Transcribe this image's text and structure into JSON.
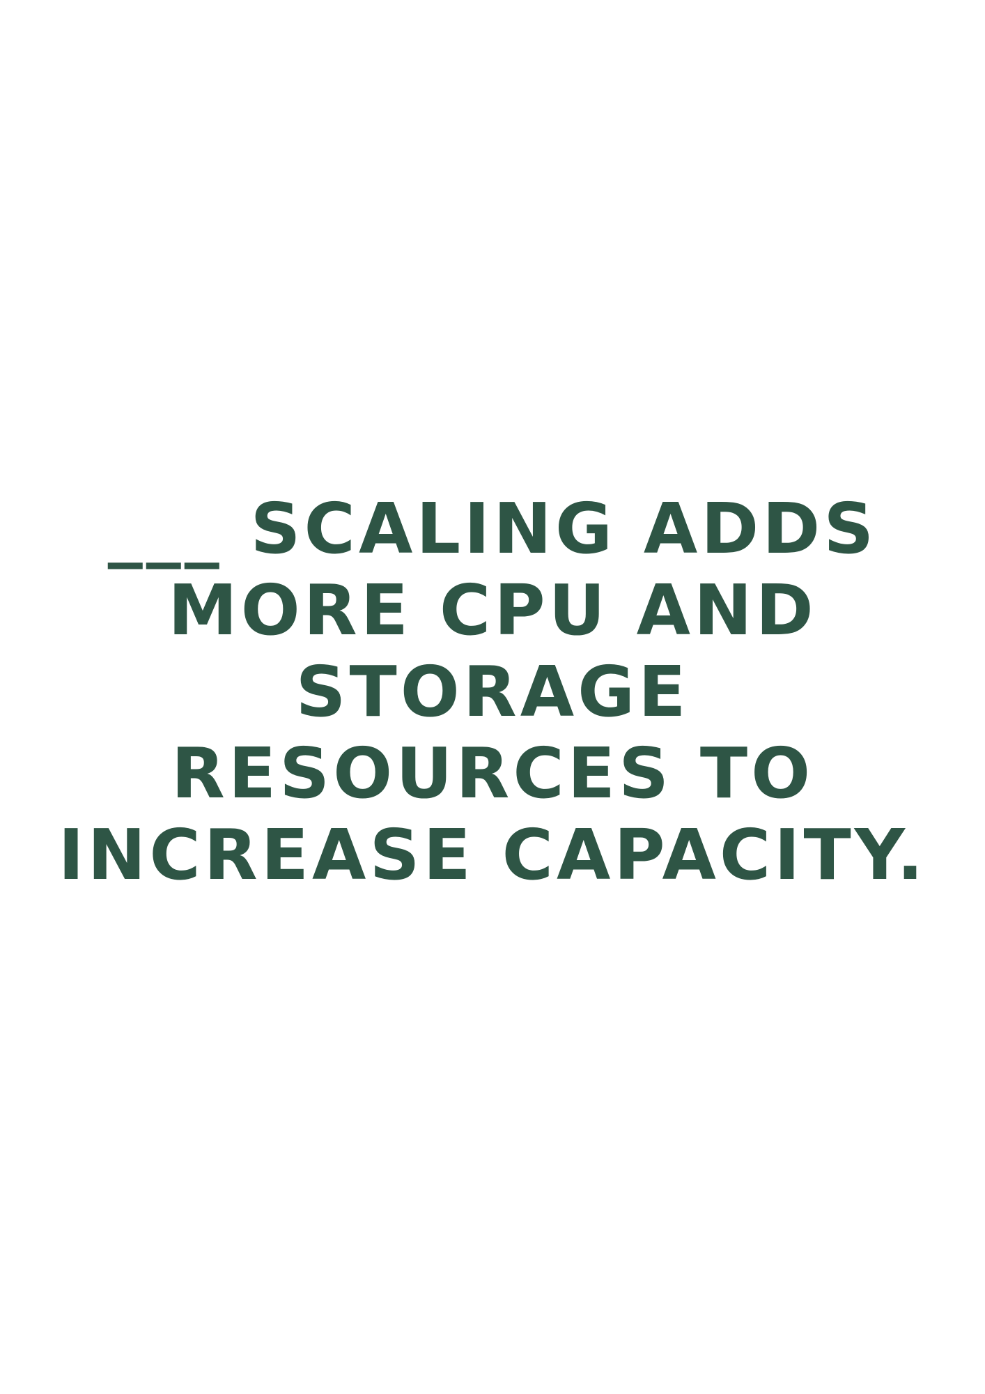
{
  "text_color": "#2e5545",
  "background_color": "#ffffff",
  "question": {
    "lines": [
      "___ SCALING ADDS",
      "MORE CPU AND",
      "STORAGE",
      "RESOURCES TO",
      "INCREASE CAPACITY."
    ]
  }
}
